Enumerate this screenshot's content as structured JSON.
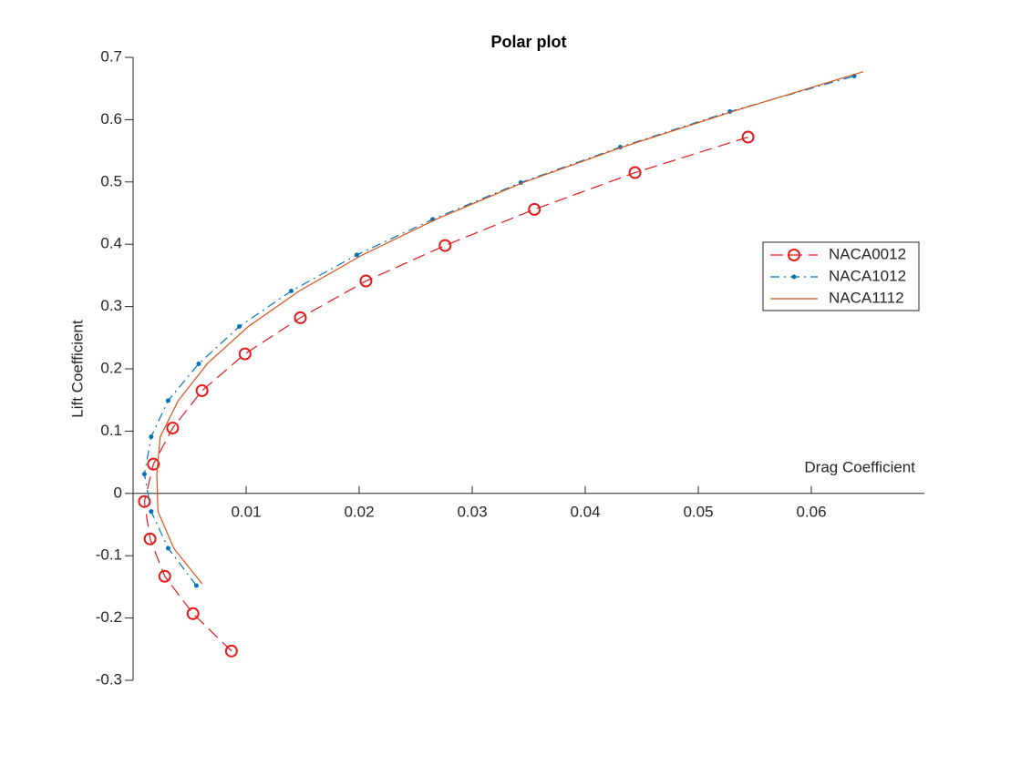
{
  "chart_data": {
    "type": "line",
    "title": "Polar plot",
    "x_label": "Drag Coefficient",
    "y_label": "Lift Coefficient",
    "xlim": [
      0,
      0.07
    ],
    "ylim": [
      -0.3,
      0.7
    ],
    "xticks": [
      0.01,
      0.02,
      0.03,
      0.04,
      0.05,
      0.06
    ],
    "yticks": [
      -0.3,
      -0.2,
      -0.1,
      0,
      0.1,
      0.2,
      0.3,
      0.4,
      0.5,
      0.6,
      0.7
    ],
    "legend": "upper-right",
    "series": [
      {
        "name": "NACA0012",
        "color": "#e41a1c",
        "line_style": "dashed",
        "marker": "circle",
        "x": [
          0.0087,
          0.0053,
          0.0028,
          0.0015,
          0.001,
          0.0018,
          0.0035,
          0.0061,
          0.0099,
          0.0148,
          0.0206,
          0.0276,
          0.0355,
          0.0444,
          0.0544
        ],
        "values": [
          -0.253,
          -0.193,
          -0.133,
          -0.073,
          -0.013,
          0.047,
          0.105,
          0.165,
          0.224,
          0.282,
          0.341,
          0.398,
          0.456,
          0.515,
          0.572
        ]
      },
      {
        "name": "NACA1012",
        "color": "#0072bd",
        "line_style": "dashdot",
        "marker": "dot",
        "x": [
          0.0056,
          0.0031,
          0.0016,
          0.001,
          0.0016,
          0.0031,
          0.0058,
          0.0094,
          0.014,
          0.0198,
          0.0265,
          0.0343,
          0.0431,
          0.0528,
          0.0638
        ],
        "values": [
          -0.148,
          -0.088,
          -0.029,
          0.031,
          0.091,
          0.149,
          0.208,
          0.268,
          0.325,
          0.383,
          0.44,
          0.499,
          0.556,
          0.613,
          0.67
        ]
      },
      {
        "name": "NACA1112",
        "color": "#d95319",
        "line_style": "solid",
        "marker": "none",
        "x": [
          0.0061,
          0.0036,
          0.0022,
          0.0021,
          0.0024,
          0.004,
          0.0066,
          0.0102,
          0.0147,
          0.0202,
          0.0268,
          0.0345,
          0.0433,
          0.0532,
          0.0646
        ],
        "values": [
          -0.145,
          -0.088,
          -0.029,
          0.031,
          0.091,
          0.149,
          0.209,
          0.268,
          0.325,
          0.382,
          0.44,
          0.499,
          0.556,
          0.614,
          0.677
        ]
      }
    ]
  }
}
